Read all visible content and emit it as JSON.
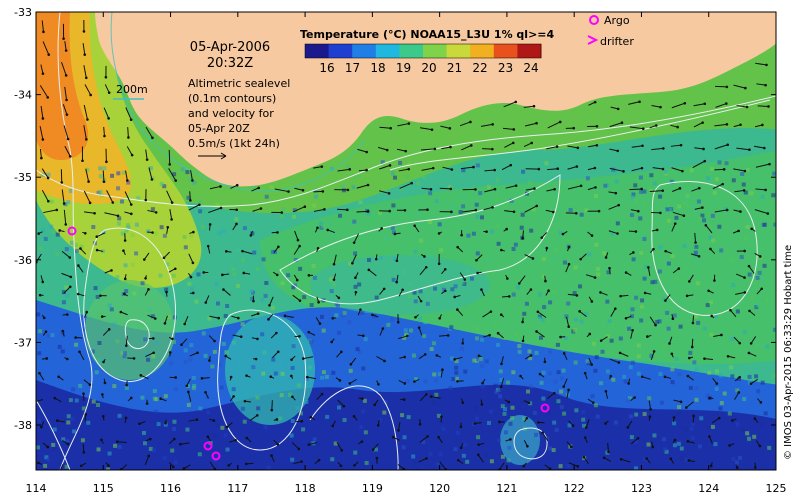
{
  "map": {
    "date": "05-Apr-2006",
    "time": "20:32Z",
    "legend_title": "Temperature (°C) NOAA15_L3U 1% ql>=4",
    "colorbar_ticks": [
      "16",
      "17",
      "18",
      "19",
      "20",
      "21",
      "22",
      "23",
      "24"
    ],
    "colorbar_colors": [
      "#1a1a8c",
      "#1f3fd0",
      "#1f7fe6",
      "#21b8e0",
      "#3cc98a",
      "#7fd24a",
      "#c9d83a",
      "#f0b020",
      "#e8501e",
      "#b01818"
    ],
    "isobath_label": "200m",
    "altimetry_note": [
      "Altimetric sealevel",
      "(0.1m contours)",
      "and velocity for",
      "05-Apr 20Z",
      "0.5m/s (1kt 24h)"
    ],
    "argo_label": "Argo",
    "drifter_label": "drifter",
    "credit": "© IMOS 03-Apr-2015 06:33:29 Hobart time",
    "x_ticks": [
      "114",
      "115",
      "116",
      "117",
      "118",
      "119",
      "120",
      "121",
      "122",
      "123",
      "124",
      "125"
    ],
    "y_ticks": [
      "-33",
      "-34",
      "-35",
      "-36",
      "-37",
      "-38"
    ],
    "colors": {
      "land": "#f7c9a0",
      "argo": "#ff00ff",
      "isobath": "#40c0c0"
    }
  }
}
